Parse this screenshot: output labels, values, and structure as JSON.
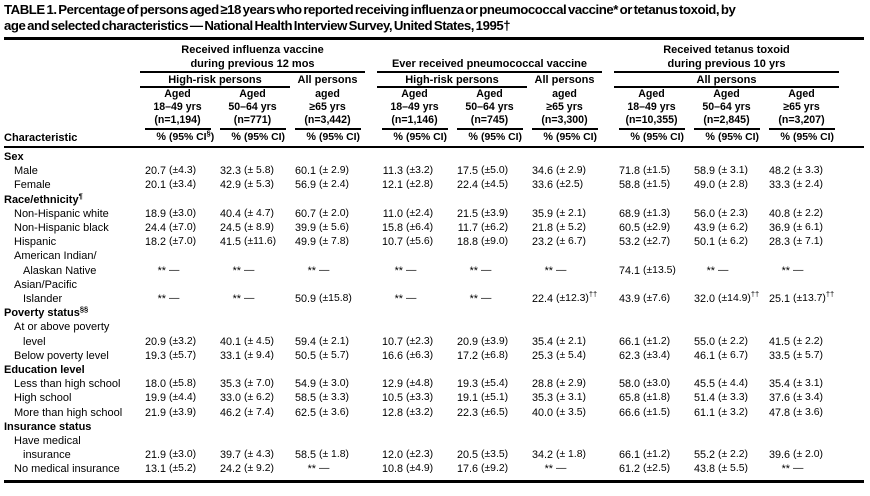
{
  "title": {
    "line1": "TABLE 1. Percentage of persons aged ≥18 years who reported receiving influenza or pneumococcal vaccine* or tetanus toxoid, by",
    "line2": "age and selected characteristics — National Health Interview Survey, United States, 1995†"
  },
  "table": {
    "characteristic_header": "Characteristic",
    "pct_symbol": "%",
    "groups": [
      {
        "title_lines": [
          "Received influenza vaccine",
          "during previous 12 mos"
        ],
        "subgroups": [
          {
            "label": "High-risk persons",
            "span": 2,
            "rule": true
          },
          {
            "label": "All persons",
            "span": 1,
            "rule": false
          }
        ],
        "columns": [
          {
            "aged": "Aged",
            "range": "18–49 yrs",
            "n": "(n=1,194)",
            "ci": "(95% CI)",
            "ci_sup": "§"
          },
          {
            "aged": "Aged",
            "range": "50–64 yrs",
            "n": "(n=771)",
            "ci": "(95% CI)"
          },
          {
            "aged": "aged",
            "range": "≥65 yrs",
            "n": "(n=3,442)",
            "ci": "(95% CI)"
          }
        ]
      },
      {
        "title_lines": [
          "Ever received pneumococcal vaccine"
        ],
        "subgroups": [
          {
            "label": "High-risk persons",
            "span": 2,
            "rule": true
          },
          {
            "label": "All persons",
            "span": 1,
            "rule": false
          }
        ],
        "columns": [
          {
            "aged": "Aged",
            "range": "18–49 yrs",
            "n": "(n=1,146)",
            "ci": "(95% CI)"
          },
          {
            "aged": "Aged",
            "range": "50–64 yrs",
            "n": "(n=745)",
            "ci": "(95% CI)"
          },
          {
            "aged": "aged",
            "range": "≥65 yrs",
            "n": "(n=3,300)",
            "ci": "(95% CI)"
          }
        ]
      },
      {
        "title_lines": [
          "Received tetanus toxoid",
          "during previous 10 yrs"
        ],
        "subgroups": [
          {
            "label": "All persons",
            "span": 3,
            "rule": true
          }
        ],
        "columns": [
          {
            "aged": "Aged",
            "range": "18–49 yrs",
            "n": "(n=10,355)",
            "ci": "(95% CI)"
          },
          {
            "aged": "Aged",
            "range": "50–64 yrs",
            "n": "(n=2,845)",
            "ci": "(95% CI)"
          },
          {
            "aged": "Aged",
            "range": "≥65 yrs",
            "n": "(n=3,207)",
            "ci": "(95% CI)"
          }
        ]
      }
    ],
    "rows": [
      {
        "t": "s",
        "label": "Sex"
      },
      {
        "t": "d",
        "lines": [
          "Male"
        ],
        "cells": [
          [
            "20.7",
            "(±4.3)"
          ],
          [
            "32.3",
            "(± 5.8)"
          ],
          [
            "60.1",
            "(± 2.9)"
          ],
          [
            "11.3",
            "(±3.2)"
          ],
          [
            "17.5",
            "(±5.0)"
          ],
          [
            "34.6",
            "(± 2.9)"
          ],
          [
            "71.8",
            "(±1.5)"
          ],
          [
            "58.9",
            "(± 3.1)"
          ],
          [
            "48.2",
            "(± 3.3)"
          ]
        ]
      },
      {
        "t": "d",
        "lines": [
          "Female"
        ],
        "cells": [
          [
            "20.1",
            "(±3.4)"
          ],
          [
            "42.9",
            "(± 5.3)"
          ],
          [
            "56.9",
            "(± 2.4)"
          ],
          [
            "12.1",
            "(±2.8)"
          ],
          [
            "22.4",
            "(±4.5)"
          ],
          [
            "33.6",
            "(±2.5)"
          ],
          [
            "58.8",
            "(±1.5)"
          ],
          [
            "49.0",
            "(± 2.8)"
          ],
          [
            "33.3",
            "(± 2.4)"
          ]
        ]
      },
      {
        "t": "s",
        "label": "Race/ethnicity",
        "sup": "¶"
      },
      {
        "t": "d",
        "lines": [
          "Non-Hispanic white"
        ],
        "cells": [
          [
            "18.9",
            "(±3.0)"
          ],
          [
            "40.4",
            "(± 4.7)"
          ],
          [
            "60.7",
            "(± 2.0)"
          ],
          [
            "11.0",
            "(±2.4)"
          ],
          [
            "21.5",
            "(±3.9)"
          ],
          [
            "35.9",
            "(± 2.1)"
          ],
          [
            "68.9",
            "(±1.3)"
          ],
          [
            "56.0",
            "(± 2.3)"
          ],
          [
            "40.8",
            "(± 2.2)"
          ]
        ]
      },
      {
        "t": "d",
        "lines": [
          "Non-Hispanic black"
        ],
        "cells": [
          [
            "24.4",
            "(±7.0)"
          ],
          [
            "24.5",
            "(± 8.9)"
          ],
          [
            "39.9",
            "(± 5.6)"
          ],
          [
            "15.8",
            "(±6.4)"
          ],
          [
            "11.7",
            "(±6.2)"
          ],
          [
            "21.8",
            "(± 5.2)"
          ],
          [
            "60.5",
            "(±2.9)"
          ],
          [
            "43.9",
            "(± 6.2)"
          ],
          [
            "36.9",
            "(± 6.1)"
          ]
        ]
      },
      {
        "t": "d",
        "lines": [
          "Hispanic"
        ],
        "cells": [
          [
            "18.2",
            "(±7.0)"
          ],
          [
            "41.5",
            "(±11.6)"
          ],
          [
            "49.9",
            "(± 7.8)"
          ],
          [
            "10.7",
            "(±5.6)"
          ],
          [
            "18.8",
            "(±9.0)"
          ],
          [
            "23.2",
            "(± 6.7)"
          ],
          [
            "53.2",
            "(±2.7)"
          ],
          [
            "50.1",
            "(± 6.2)"
          ],
          [
            "28.3",
            "(± 7.1)"
          ]
        ]
      },
      {
        "t": "d",
        "lines": [
          "American Indian/",
          "Alaskan Native"
        ],
        "cells": [
          [
            "**",
            "—"
          ],
          [
            "**",
            "—"
          ],
          [
            "**",
            "—"
          ],
          [
            "**",
            "—"
          ],
          [
            "**",
            "—"
          ],
          [
            "**",
            "—"
          ],
          [
            "74.1",
            "(±13.5)"
          ],
          [
            "**",
            "—"
          ],
          [
            "**",
            "—"
          ]
        ]
      },
      {
        "t": "d",
        "lines": [
          "Asian/Pacific",
          "Islander"
        ],
        "cells": [
          [
            "**",
            "—"
          ],
          [
            "**",
            "—"
          ],
          [
            "50.9",
            "(±15.8)"
          ],
          [
            "**",
            "—"
          ],
          [
            "**",
            "—"
          ],
          [
            "22.4",
            "(±12.3)",
            "††"
          ],
          [
            "43.9",
            "(±7.6)"
          ],
          [
            "32.0",
            "(±14.9)",
            "††"
          ],
          [
            "25.1",
            "(±13.7)",
            "††"
          ]
        ]
      },
      {
        "t": "s",
        "label": "Poverty status",
        "sup": "§§"
      },
      {
        "t": "d",
        "lines": [
          "At or above poverty",
          "level"
        ],
        "cells": [
          [
            "20.9",
            "(±3.2)"
          ],
          [
            "40.1",
            "(± 4.5)"
          ],
          [
            "59.4",
            "(± 2.1)"
          ],
          [
            "10.7",
            "(±2.3)"
          ],
          [
            "20.9",
            "(±3.9)"
          ],
          [
            "35.4",
            "(± 2.1)"
          ],
          [
            "66.1",
            "(±1.2)"
          ],
          [
            "55.0",
            "(± 2.2)"
          ],
          [
            "41.5",
            "(± 2.2)"
          ]
        ]
      },
      {
        "t": "d",
        "lines": [
          "Below poverty level"
        ],
        "cells": [
          [
            "19.3",
            "(±5.7)"
          ],
          [
            "33.1",
            "(± 9.4)"
          ],
          [
            "50.5",
            "(± 5.7)"
          ],
          [
            "16.6",
            "(±6.3)"
          ],
          [
            "17.2",
            "(±6.8)"
          ],
          [
            "25.3",
            "(± 5.4)"
          ],
          [
            "62.3",
            "(±3.4)"
          ],
          [
            "46.1",
            "(± 6.7)"
          ],
          [
            "33.5",
            "(± 5.7)"
          ]
        ]
      },
      {
        "t": "s",
        "label": "Education level"
      },
      {
        "t": "d",
        "lines": [
          "Less than high school"
        ],
        "cells": [
          [
            "18.0",
            "(±5.8)"
          ],
          [
            "35.3",
            "(± 7.0)"
          ],
          [
            "54.9",
            "(± 3.0)"
          ],
          [
            "12.9",
            "(±4.8)"
          ],
          [
            "19.3",
            "(±5.4)"
          ],
          [
            "28.8",
            "(± 2.9)"
          ],
          [
            "58.0",
            "(±3.0)"
          ],
          [
            "45.5",
            "(± 4.4)"
          ],
          [
            "35.4",
            "(± 3.1)"
          ]
        ]
      },
      {
        "t": "d",
        "lines": [
          "High school"
        ],
        "cells": [
          [
            "19.9",
            "(±4.4)"
          ],
          [
            "33.0",
            "(± 6.2)"
          ],
          [
            "58.5",
            "(± 3.3)"
          ],
          [
            "10.5",
            "(±3.3)"
          ],
          [
            "19.1",
            "(±5.1)"
          ],
          [
            "35.3",
            "(± 3.1)"
          ],
          [
            "65.8",
            "(±1.8)"
          ],
          [
            "51.4",
            "(± 3.3)"
          ],
          [
            "37.6",
            "(± 3.4)"
          ]
        ]
      },
      {
        "t": "d",
        "lines": [
          "More than high school"
        ],
        "cells": [
          [
            "21.9",
            "(±3.9)"
          ],
          [
            "46.2",
            "(± 7.4)"
          ],
          [
            "62.5",
            "(± 3.6)"
          ],
          [
            "12.8",
            "(±3.2)"
          ],
          [
            "22.3",
            "(±6.5)"
          ],
          [
            "40.0",
            "(± 3.5)"
          ],
          [
            "66.6",
            "(±1.5)"
          ],
          [
            "61.1",
            "(± 3.2)"
          ],
          [
            "47.8",
            "(± 3.6)"
          ]
        ]
      },
      {
        "t": "s",
        "label": "Insurance status"
      },
      {
        "t": "d",
        "lines": [
          "Have medical",
          "insurance"
        ],
        "cells": [
          [
            "21.9",
            "(±3.0)"
          ],
          [
            "39.7",
            "(± 4.3)"
          ],
          [
            "58.5",
            "(± 1.8)"
          ],
          [
            "12.0",
            "(±2.3)"
          ],
          [
            "20.5",
            "(±3.5)"
          ],
          [
            "34.2",
            "(± 1.8)"
          ],
          [
            "66.1",
            "(±1.2)"
          ],
          [
            "55.2",
            "(± 2.2)"
          ],
          [
            "39.6",
            "(± 2.0)"
          ]
        ]
      },
      {
        "t": "d",
        "lines": [
          "No medical insurance"
        ],
        "cells": [
          [
            "13.1",
            "(±5.2)"
          ],
          [
            "24.2",
            "(± 9.2)"
          ],
          [
            "**",
            "—"
          ],
          [
            "10.8",
            "(±4.9)"
          ],
          [
            "17.6",
            "(±9.2)"
          ],
          [
            "**",
            "—"
          ],
          [
            "61.2",
            "(±2.5)"
          ],
          [
            "43.8",
            "(± 5.5)"
          ],
          [
            "**",
            "—"
          ]
        ]
      }
    ]
  }
}
